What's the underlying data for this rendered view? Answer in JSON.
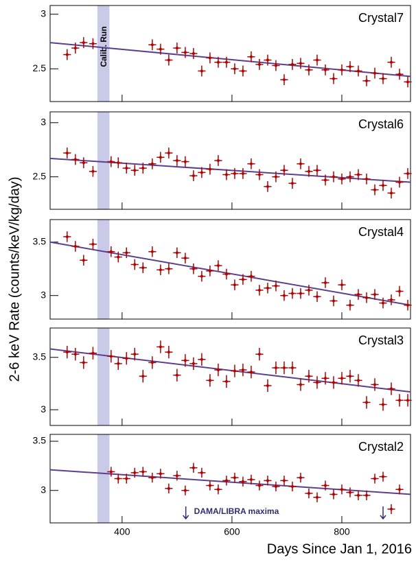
{
  "chart_data": [
    {
      "type": "scatter",
      "name": "Crystal7",
      "ylabel": "2-6 keV Rate (counts/keV/kg/day)",
      "color": "#b00000",
      "fit_color": "#5b3f8f",
      "band_color": "#c9c9e8",
      "band": [
        355,
        377
      ],
      "band_label": "Calib. Run",
      "xlim": [
        269,
        925
      ],
      "xticks": [
        400,
        600,
        800
      ],
      "ylim": [
        2.2,
        3.08
      ],
      "yticks": [
        2.5,
        3
      ],
      "xerr": 7,
      "yerr": 0.05,
      "x": [
        300,
        315,
        330,
        347,
        455,
        470,
        485,
        500,
        515,
        530,
        545,
        560,
        575,
        590,
        605,
        620,
        635,
        650,
        665,
        680,
        695,
        710,
        725,
        740,
        755,
        770,
        785,
        800,
        815,
        830,
        845,
        860,
        875,
        890,
        905,
        920
      ],
      "values": [
        2.63,
        2.69,
        2.74,
        2.73,
        2.72,
        2.68,
        2.58,
        2.69,
        2.65,
        2.64,
        2.48,
        2.6,
        2.56,
        2.56,
        2.5,
        2.48,
        2.61,
        2.54,
        2.58,
        2.53,
        2.4,
        2.54,
        2.55,
        2.49,
        2.58,
        2.49,
        2.41,
        2.49,
        2.52,
        2.48,
        2.39,
        2.46,
        2.41,
        2.56,
        2.45,
        2.38
      ],
      "fit": {
        "x": [
          269,
          925
        ],
        "values": [
          2.74,
          2.43
        ]
      }
    },
    {
      "type": "scatter",
      "name": "Crystal6",
      "color": "#b00000",
      "fit_color": "#5b3f8f",
      "band_color": "#c9c9e8",
      "band": [
        355,
        377
      ],
      "xlim": [
        269,
        925
      ],
      "xticks": [
        400,
        600,
        800
      ],
      "ylim": [
        2.2,
        3.1
      ],
      "yticks": [
        2.5,
        3
      ],
      "xerr": 7,
      "yerr": 0.05,
      "x": [
        300,
        315,
        330,
        347,
        380,
        393,
        408,
        423,
        438,
        455,
        470,
        485,
        500,
        515,
        530,
        545,
        560,
        575,
        590,
        605,
        620,
        635,
        650,
        665,
        680,
        695,
        710,
        725,
        740,
        755,
        770,
        785,
        800,
        815,
        830,
        845,
        860,
        875,
        890,
        905,
        920
      ],
      "values": [
        2.72,
        2.66,
        2.63,
        2.55,
        2.64,
        2.63,
        2.58,
        2.56,
        2.58,
        2.62,
        2.68,
        2.72,
        2.65,
        2.64,
        2.51,
        2.54,
        2.57,
        2.65,
        2.52,
        2.53,
        2.53,
        2.62,
        2.52,
        2.41,
        2.5,
        2.56,
        2.44,
        2.62,
        2.55,
        2.56,
        2.47,
        2.5,
        2.48,
        2.5,
        2.52,
        2.48,
        2.38,
        2.42,
        2.35,
        2.45,
        2.53
      ],
      "fit": {
        "x": [
          269,
          925
        ],
        "values": [
          2.67,
          2.45
        ]
      }
    },
    {
      "type": "scatter",
      "name": "Crystal4",
      "color": "#b00000",
      "fit_color": "#5b3f8f",
      "band_color": "#c9c9e8",
      "band": [
        355,
        377
      ],
      "xlim": [
        269,
        925
      ],
      "xticks": [
        400,
        600,
        800
      ],
      "ylim": [
        2.78,
        3.71
      ],
      "yticks": [
        3,
        3.5
      ],
      "xerr": 7,
      "yerr": 0.05,
      "x": [
        300,
        315,
        330,
        347,
        380,
        393,
        408,
        423,
        438,
        455,
        470,
        485,
        500,
        515,
        530,
        545,
        560,
        575,
        590,
        605,
        620,
        635,
        650,
        665,
        680,
        695,
        710,
        725,
        740,
        755,
        770,
        785,
        800,
        815,
        830,
        845,
        860,
        875,
        890,
        905,
        920
      ],
      "values": [
        3.55,
        3.46,
        3.33,
        3.48,
        3.41,
        3.36,
        3.4,
        3.29,
        3.26,
        3.41,
        3.24,
        3.25,
        3.4,
        3.35,
        3.25,
        3.18,
        3.23,
        3.28,
        3.2,
        3.1,
        3.15,
        3.18,
        3.05,
        3.07,
        3.09,
        3.0,
        3.02,
        3.02,
        3.05,
        2.99,
        3.12,
        2.95,
        3.1,
        2.91,
        3.01,
        2.98,
        3.01,
        2.93,
        2.96,
        3.04,
        2.91
      ],
      "fit": {
        "x": [
          269,
          925
        ],
        "values": [
          3.5,
          2.91
        ]
      }
    },
    {
      "type": "scatter",
      "name": "Crystal3",
      "color": "#b00000",
      "fit_color": "#5b3f8f",
      "band_color": "#c9c9e8",
      "band": [
        355,
        377
      ],
      "xlim": [
        269,
        925
      ],
      "xticks": [
        400,
        600,
        800
      ],
      "ylim": [
        2.85,
        3.78
      ],
      "yticks": [
        3,
        3.5
      ],
      "xerr": 7,
      "yerr": 0.06,
      "x": [
        300,
        315,
        330,
        347,
        380,
        393,
        408,
        423,
        438,
        455,
        470,
        485,
        500,
        515,
        530,
        545,
        560,
        575,
        590,
        605,
        620,
        635,
        650,
        665,
        680,
        695,
        710,
        725,
        740,
        755,
        770,
        785,
        800,
        815,
        830,
        845,
        860,
        875,
        890,
        905,
        920
      ],
      "values": [
        3.55,
        3.53,
        3.45,
        3.54,
        3.51,
        3.44,
        3.49,
        3.53,
        3.32,
        3.45,
        3.6,
        3.55,
        3.33,
        3.47,
        3.44,
        3.48,
        3.28,
        3.38,
        3.27,
        3.37,
        3.38,
        3.36,
        3.53,
        3.23,
        3.4,
        3.4,
        3.4,
        3.24,
        3.32,
        3.26,
        3.3,
        3.26,
        3.3,
        3.32,
        3.28,
        3.07,
        3.24,
        3.05,
        3.2,
        3.09,
        3.09
      ],
      "fit": {
        "x": [
          269,
          925
        ],
        "values": [
          3.58,
          3.17
        ]
      }
    },
    {
      "type": "scatter",
      "name": "Crystal2",
      "xlabel": "Days Since Jan 1, 2016",
      "color": "#b00000",
      "fit_color": "#5b3f8f",
      "band_color": "#c9c9e8",
      "band": [
        355,
        377
      ],
      "xlim": [
        269,
        925
      ],
      "xticks": [
        400,
        600,
        800
      ],
      "ylim": [
        2.67,
        3.57
      ],
      "yticks": [
        3,
        3.5
      ],
      "xerr": 7,
      "yerr": 0.05,
      "annotation": "DAMA/LIBRA maxima",
      "annotation_color": "#2e2e6e",
      "arrows": [
        516,
        875
      ],
      "x": [
        380,
        393,
        408,
        423,
        438,
        455,
        470,
        485,
        500,
        515,
        530,
        545,
        560,
        575,
        590,
        605,
        620,
        635,
        650,
        665,
        680,
        695,
        710,
        725,
        740,
        755,
        770,
        785,
        800,
        815,
        830,
        845,
        860,
        875,
        890,
        905
      ],
      "values": [
        3.19,
        3.12,
        3.12,
        3.18,
        3.19,
        3.13,
        3.17,
        3.02,
        3.15,
        3.0,
        3.23,
        3.18,
        3.05,
        3.01,
        3.1,
        3.13,
        3.09,
        3.11,
        3.05,
        3.1,
        3.04,
        3.1,
        3.04,
        3.13,
        2.97,
        2.93,
        3.05,
        2.96,
        3.01,
        2.98,
        2.95,
        2.95,
        3.12,
        3.14,
        2.81,
        3.01
      ],
      "fit": {
        "x": [
          269,
          925
        ],
        "values": [
          3.21,
          2.96
        ]
      }
    }
  ]
}
